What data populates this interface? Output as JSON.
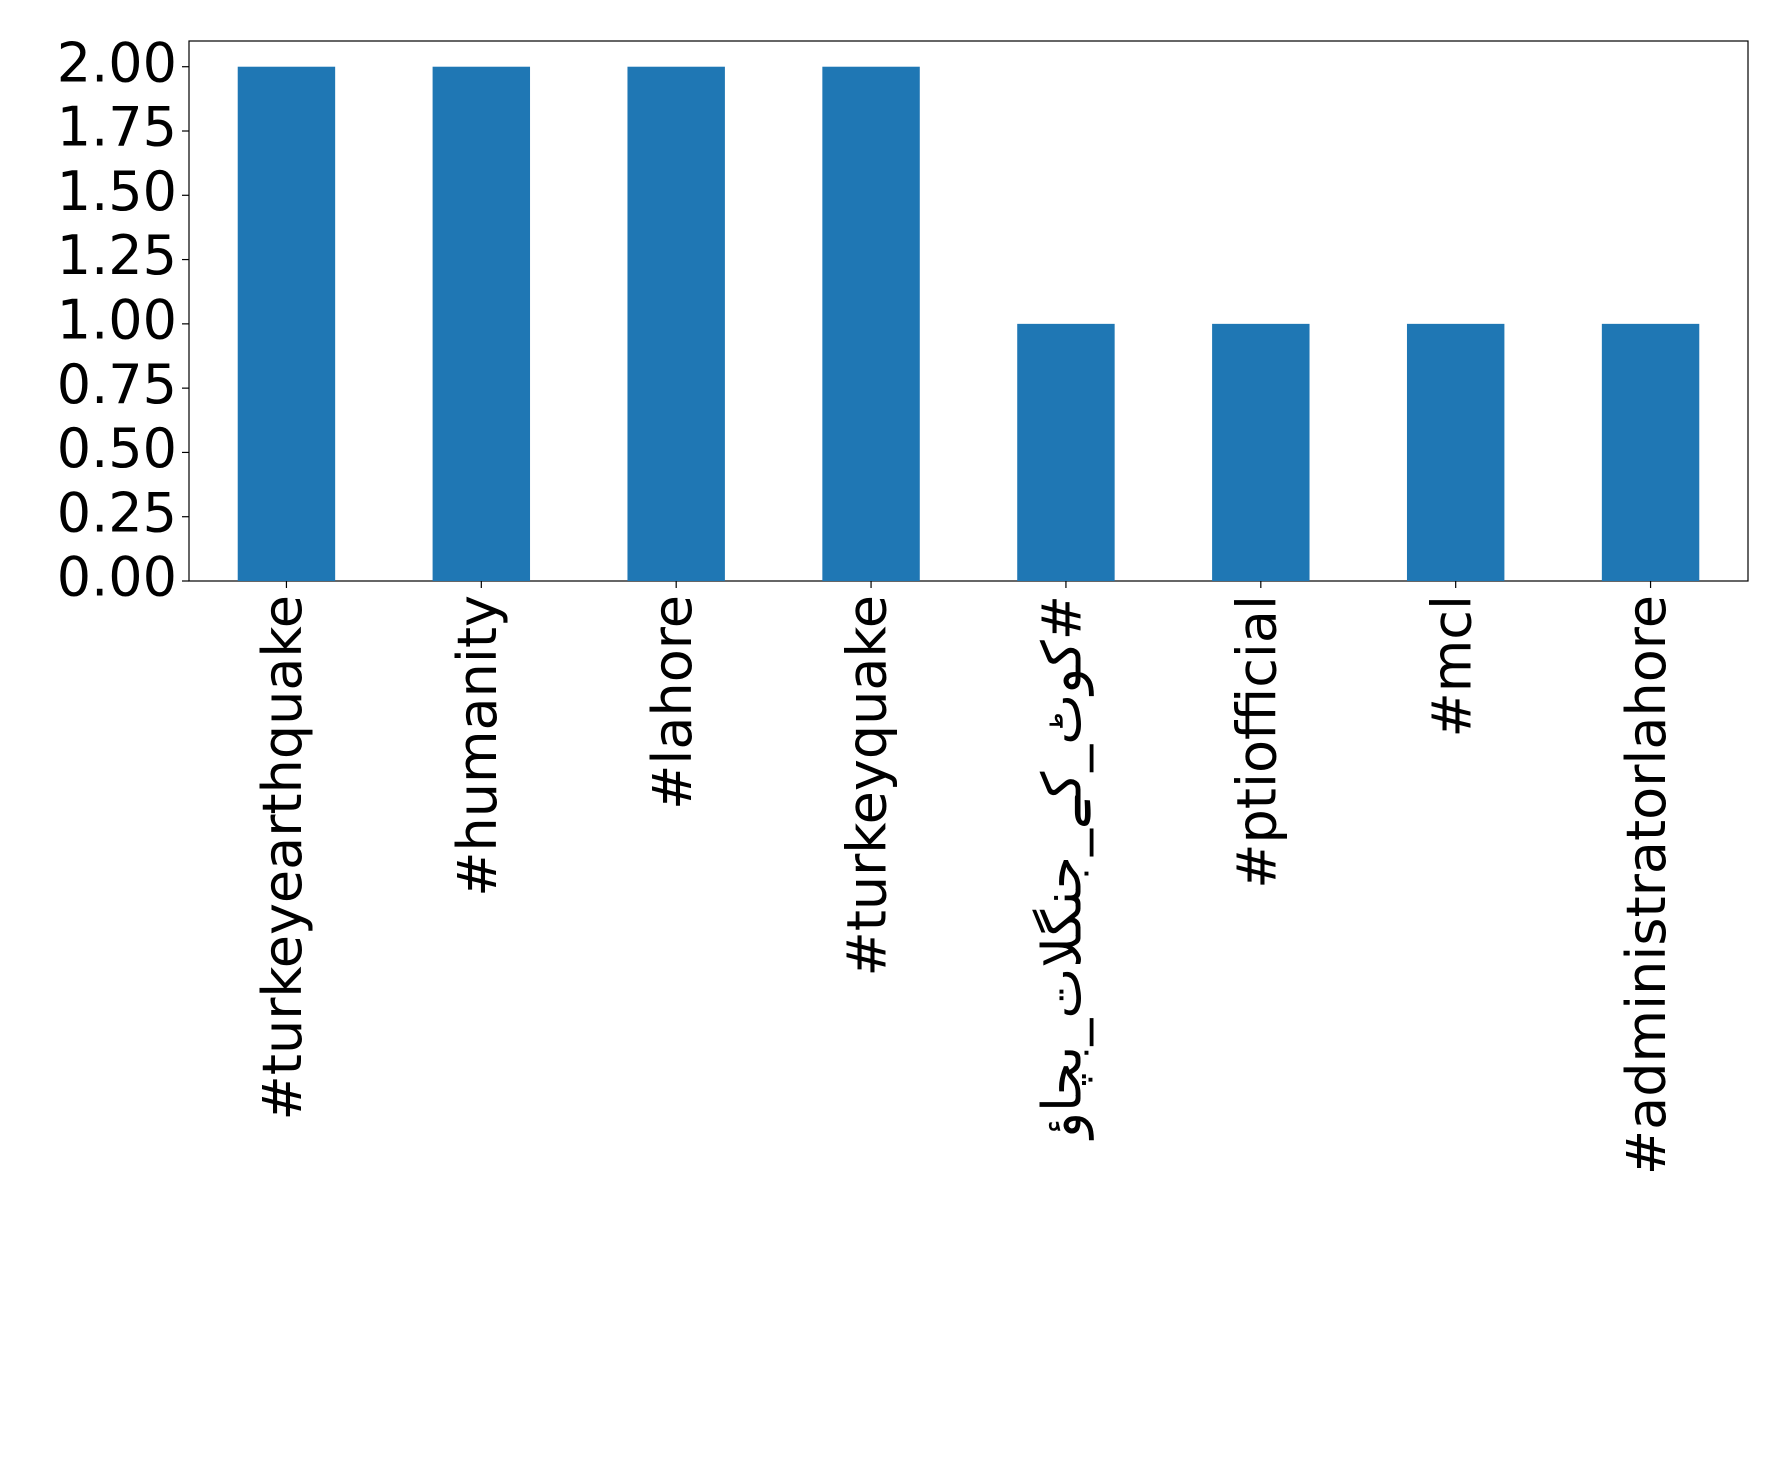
{
  "chart_data": {
    "type": "bar",
    "categories": [
      "#turkeyearthquake",
      "#humanity",
      "#lahore",
      "#turkeyquake",
      "#کوٹ_کے_جنگلات_بچاؤ",
      "#ptiofficial",
      "#mcl",
      "#administratorlahore"
    ],
    "values": [
      2,
      2,
      2,
      2,
      1,
      1,
      1,
      1
    ],
    "color": "#1f77b4",
    "ylim": [
      0,
      2.1
    ],
    "yticks": [
      {
        "value": 0,
        "label": "0.00"
      },
      {
        "value": 0.25,
        "label": "0.25"
      },
      {
        "value": 0.5,
        "label": "0.50"
      },
      {
        "value": 0.75,
        "label": "0.75"
      },
      {
        "value": 1,
        "label": "1.00"
      },
      {
        "value": 1.25,
        "label": "1.25"
      },
      {
        "value": 1.5,
        "label": "1.50"
      },
      {
        "value": 1.75,
        "label": "1.75"
      },
      {
        "value": 2,
        "label": "2.00"
      }
    ],
    "grid": false
  }
}
